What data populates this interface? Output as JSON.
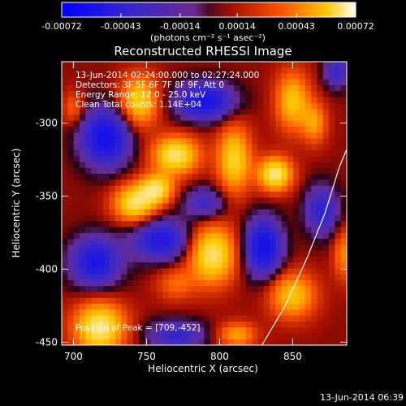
{
  "chart_data": {
    "type": "heatmap",
    "title": "Reconstructed RHESSI Image",
    "xlabel": "Heliocentric X (arcsec)",
    "ylabel": "Heliocentric Y (arcsec)",
    "xlim": [
      692,
      887
    ],
    "ylim": [
      -452,
      -258
    ],
    "x_ticks": [
      700,
      750,
      800,
      850
    ],
    "x_tick_labels": [
      "700",
      "750",
      "800",
      "850"
    ],
    "y_ticks": [
      -300,
      -350,
      -400,
      -450
    ],
    "y_tick_labels": [
      "-300",
      "-350",
      "-400",
      "-450"
    ],
    "colorbar": {
      "min": -0.00072,
      "max": 0.00072,
      "ticks": [
        -0.00072,
        -0.00043,
        -0.00014,
        0.00014,
        0.00043,
        0.00072
      ],
      "tick_labels": [
        "-0.00072",
        "-0.00043",
        "-0.00014",
        "0.00014",
        "0.00043",
        "0.00072"
      ],
      "units_label": "(photons cm⁻² s⁻¹ asec⁻²)"
    },
    "annotations": [
      "13-Jun-2014 02:24:00.000 to 02:27:24.000",
      "Detectors: 3F 5F 6F 7F 8F 9F, Att 0",
      "Energy Range: 12.0 - 25.0 keV",
      "Clean    Total counts: 1.14E+04"
    ],
    "peak_label": "Position of Peak = [709,-452]",
    "timestamp": "13-Jun-2014 06:39",
    "sources": [
      {
        "x": 745,
        "y": -285,
        "sx": 9,
        "sy": 12,
        "amp": 0.8
      },
      {
        "x": 770,
        "y": -322,
        "sx": 11,
        "sy": 9,
        "amp": 0.95
      },
      {
        "x": 757,
        "y": -345,
        "sx": 8,
        "sy": 7,
        "amp": 0.85
      },
      {
        "x": 742,
        "y": -355,
        "sx": 10,
        "sy": 9,
        "amp": 0.9
      },
      {
        "x": 795,
        "y": -390,
        "sx": 11,
        "sy": 14,
        "amp": 0.95
      },
      {
        "x": 810,
        "y": -325,
        "sx": 8,
        "sy": 16,
        "amp": 0.8
      },
      {
        "x": 838,
        "y": -335,
        "sx": 8,
        "sy": 8,
        "amp": 1.0
      },
      {
        "x": 850,
        "y": -285,
        "sx": 8,
        "sy": 14,
        "amp": 0.7
      },
      {
        "x": 865,
        "y": -300,
        "sx": 6,
        "sy": 10,
        "amp": 0.5
      },
      {
        "x": 718,
        "y": -440,
        "sx": 12,
        "sy": 12,
        "amp": 1.0
      },
      {
        "x": 850,
        "y": -418,
        "sx": 11,
        "sy": 11,
        "amp": 0.7
      },
      {
        "x": 812,
        "y": -445,
        "sx": 9,
        "sy": 6,
        "amp": 0.55
      },
      {
        "x": 700,
        "y": -290,
        "sx": 5,
        "sy": 8,
        "amp": 0.35
      },
      {
        "x": 885,
        "y": -390,
        "sx": 5,
        "sy": 12,
        "amp": 0.45
      },
      {
        "x": 770,
        "y": -410,
        "sx": 9,
        "sy": 8,
        "amp": 0.35
      }
    ],
    "negatives": [
      {
        "x": 722,
        "y": -310,
        "sx": 12,
        "sy": 14,
        "amp": 0.9
      },
      {
        "x": 790,
        "y": -285,
        "sx": 14,
        "sy": 9,
        "amp": 0.85
      },
      {
        "x": 760,
        "y": -380,
        "sx": 14,
        "sy": 10,
        "amp": 0.75
      },
      {
        "x": 715,
        "y": -395,
        "sx": 12,
        "sy": 12,
        "amp": 0.8
      },
      {
        "x": 830,
        "y": -385,
        "sx": 9,
        "sy": 14,
        "amp": 0.9
      },
      {
        "x": 870,
        "y": -360,
        "sx": 8,
        "sy": 12,
        "amp": 0.6
      },
      {
        "x": 790,
        "y": -355,
        "sx": 10,
        "sy": 8,
        "amp": 0.5
      },
      {
        "x": 770,
        "y": -445,
        "sx": 14,
        "sy": 7,
        "amp": 0.55
      },
      {
        "x": 880,
        "y": -265,
        "sx": 6,
        "sy": 8,
        "amp": 0.5
      }
    ]
  }
}
